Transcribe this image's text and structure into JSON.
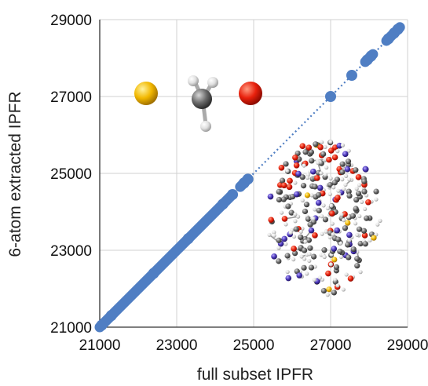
{
  "chart_data": {
    "type": "scatter",
    "title": "",
    "xlabel": "full subset IPFR",
    "ylabel": "6-atom extracted IPFR",
    "xlim": [
      21000,
      29000
    ],
    "ylim": [
      21000,
      29000
    ],
    "x_ticks": [
      "21000",
      "23000",
      "25000",
      "27000",
      "29000"
    ],
    "y_ticks": [
      "21000",
      "23000",
      "25000",
      "27000",
      "29000"
    ],
    "grid": "vertical and horizontal at major ticks",
    "legend": "none",
    "series": [
      {
        "marker_color": "#4f7ec3",
        "points": [
          [
            21050,
            21050
          ],
          [
            21300,
            21300
          ],
          [
            22400,
            22400
          ],
          [
            23300,
            23300
          ],
          [
            24200,
            24200
          ],
          [
            24450,
            24450
          ],
          [
            24750,
            24750
          ],
          [
            24850,
            24850
          ],
          [
            27000,
            27000
          ],
          [
            27550,
            27550
          ],
          [
            27950,
            27950
          ],
          [
            28050,
            28050
          ],
          [
            28500,
            28500
          ],
          [
            28650,
            28650
          ],
          [
            28750,
            28750
          ]
        ],
        "dense_segments": [
          [
            21000,
            24400
          ],
          [
            24650,
            24800
          ],
          [
            27900,
            28100
          ],
          [
            28450,
            28800
          ]
        ],
        "dotted_trend": [
          [
            21000,
            21000
          ],
          [
            28800,
            28800
          ]
        ]
      }
    ],
    "insets": [
      {
        "kind": "molecule-diagram-small",
        "atoms": [
          "yellow",
          "gray-white methyl",
          "red"
        ]
      },
      {
        "kind": "molecule-cluster-large"
      }
    ]
  }
}
